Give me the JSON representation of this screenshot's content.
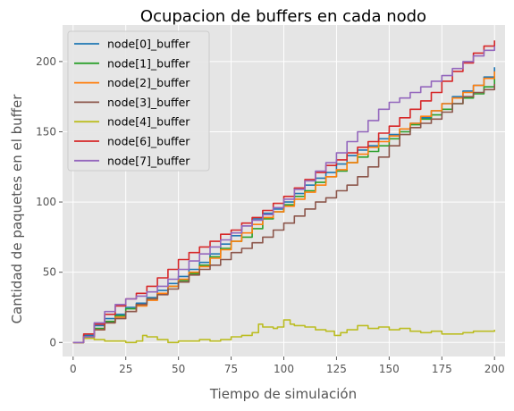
{
  "chart_data": {
    "type": "line",
    "title": "Ocupacion de buffers en cada nodo",
    "xlabel": "Tiempo de simulación",
    "ylabel": "Cantidad de paquetes en el buffer",
    "xlim": [
      -5,
      205
    ],
    "ylim": [
      -10,
      226
    ],
    "xticks": [
      0,
      25,
      50,
      75,
      100,
      125,
      150,
      175,
      200
    ],
    "yticks": [
      0,
      50,
      100,
      150,
      200
    ],
    "grid": true,
    "legend_position": "top-left",
    "style": {
      "plot_background": "#e5e5e5",
      "grid_color": "#ffffff"
    },
    "series": [
      {
        "name": "node[0]_buffer",
        "color": "#1f77b4",
        "x": [
          0,
          5,
          10,
          15,
          20,
          25,
          30,
          35,
          40,
          45,
          50,
          55,
          60,
          65,
          70,
          75,
          80,
          85,
          90,
          95,
          100,
          105,
          110,
          115,
          120,
          125,
          130,
          135,
          140,
          145,
          150,
          155,
          160,
          165,
          170,
          175,
          180,
          185,
          190,
          195,
          200
        ],
        "y": [
          0,
          5,
          12,
          17,
          20,
          25,
          28,
          32,
          37,
          42,
          47,
          52,
          57,
          63,
          70,
          76,
          83,
          88,
          92,
          95,
          100,
          106,
          112,
          117,
          121,
          127,
          133,
          137,
          140,
          145,
          148,
          152,
          156,
          160,
          165,
          170,
          175,
          179,
          183,
          189,
          196
        ]
      },
      {
        "name": "node[1]_buffer",
        "color": "#2ca02c",
        "x": [
          0,
          5,
          10,
          15,
          20,
          25,
          30,
          35,
          40,
          45,
          50,
          55,
          60,
          65,
          70,
          75,
          80,
          85,
          90,
          95,
          100,
          105,
          110,
          115,
          120,
          125,
          130,
          135,
          140,
          145,
          150,
          155,
          160,
          165,
          170,
          175,
          180,
          185,
          190,
          195,
          200
        ],
        "y": [
          0,
          4,
          10,
          15,
          19,
          24,
          27,
          31,
          35,
          40,
          44,
          49,
          55,
          61,
          67,
          72,
          75,
          81,
          88,
          93,
          98,
          104,
          108,
          114,
          118,
          122,
          128,
          132,
          136,
          140,
          145,
          150,
          155,
          159,
          162,
          166,
          170,
          174,
          177,
          182,
          188
        ]
      },
      {
        "name": "node[2]_buffer",
        "color": "#ff7f0e",
        "x": [
          0,
          5,
          10,
          15,
          20,
          25,
          30,
          35,
          40,
          45,
          50,
          55,
          60,
          65,
          70,
          75,
          80,
          85,
          90,
          95,
          100,
          105,
          110,
          115,
          120,
          125,
          130,
          135,
          140,
          145,
          150,
          155,
          160,
          165,
          170,
          175,
          180,
          185,
          190,
          195,
          200
        ],
        "y": [
          0,
          3,
          9,
          14,
          18,
          22,
          26,
          30,
          35,
          40,
          45,
          50,
          54,
          60,
          66,
          72,
          78,
          84,
          89,
          93,
          97,
          102,
          107,
          112,
          118,
          123,
          128,
          134,
          139,
          143,
          147,
          152,
          156,
          161,
          165,
          170,
          174,
          178,
          183,
          188,
          193
        ]
      },
      {
        "name": "node[3]_buffer",
        "color": "#8c564b",
        "x": [
          0,
          5,
          10,
          15,
          20,
          25,
          30,
          35,
          40,
          45,
          50,
          55,
          60,
          65,
          70,
          75,
          80,
          85,
          90,
          95,
          100,
          105,
          110,
          115,
          120,
          125,
          130,
          135,
          140,
          145,
          150,
          155,
          160,
          165,
          170,
          175,
          180,
          185,
          190,
          195,
          200
        ],
        "y": [
          0,
          4,
          9,
          14,
          17,
          22,
          27,
          31,
          34,
          38,
          43,
          48,
          52,
          55,
          59,
          64,
          67,
          71,
          75,
          80,
          85,
          90,
          95,
          100,
          103,
          108,
          112,
          118,
          125,
          132,
          140,
          148,
          153,
          156,
          159,
          164,
          170,
          175,
          178,
          180,
          184
        ]
      },
      {
        "name": "node[4]_buffer",
        "color": "#bcbd22",
        "x": [
          0,
          5,
          10,
          15,
          20,
          25,
          30,
          33,
          35,
          40,
          45,
          50,
          55,
          60,
          65,
          70,
          75,
          80,
          85,
          88,
          90,
          95,
          97,
          100,
          103,
          105,
          110,
          115,
          120,
          124,
          127,
          130,
          135,
          140,
          145,
          150,
          155,
          160,
          165,
          170,
          175,
          180,
          185,
          190,
          195,
          200
        ],
        "y": [
          0,
          3,
          2,
          1,
          1,
          0,
          1,
          5,
          4,
          2,
          0,
          1,
          1,
          2,
          1,
          2,
          4,
          5,
          7,
          13,
          11,
          10,
          11,
          16,
          13,
          12,
          11,
          9,
          8,
          5,
          7,
          9,
          12,
          10,
          11,
          9,
          10,
          8,
          7,
          8,
          6,
          6,
          7,
          8,
          8,
          9
        ]
      },
      {
        "name": "node[6]_buffer",
        "color": "#d62728",
        "x": [
          0,
          5,
          10,
          15,
          20,
          25,
          30,
          35,
          40,
          45,
          50,
          55,
          60,
          65,
          70,
          75,
          80,
          85,
          90,
          95,
          100,
          105,
          110,
          115,
          120,
          125,
          130,
          135,
          140,
          145,
          150,
          155,
          160,
          165,
          170,
          175,
          180,
          185,
          190,
          195,
          200
        ],
        "y": [
          0,
          6,
          13,
          20,
          26,
          31,
          35,
          40,
          46,
          52,
          59,
          64,
          68,
          72,
          77,
          80,
          85,
          89,
          94,
          99,
          104,
          110,
          116,
          121,
          126,
          130,
          135,
          139,
          143,
          149,
          154,
          160,
          166,
          172,
          178,
          186,
          193,
          199,
          206,
          211,
          215
        ]
      },
      {
        "name": "node[7]_buffer",
        "color": "#9467bd",
        "x": [
          0,
          5,
          10,
          15,
          20,
          25,
          30,
          35,
          40,
          45,
          50,
          55,
          60,
          65,
          70,
          75,
          80,
          85,
          90,
          95,
          100,
          105,
          110,
          115,
          120,
          125,
          130,
          135,
          140,
          145,
          150,
          155,
          160,
          165,
          170,
          175,
          180,
          185,
          190,
          195,
          200
        ],
        "y": [
          0,
          4,
          14,
          22,
          27,
          31,
          33,
          36,
          40,
          45,
          52,
          58,
          63,
          68,
          73,
          78,
          83,
          87,
          91,
          96,
          102,
          109,
          115,
          122,
          128,
          135,
          143,
          150,
          158,
          166,
          171,
          174,
          178,
          182,
          186,
          190,
          195,
          200,
          204,
          208,
          211
        ]
      }
    ]
  }
}
